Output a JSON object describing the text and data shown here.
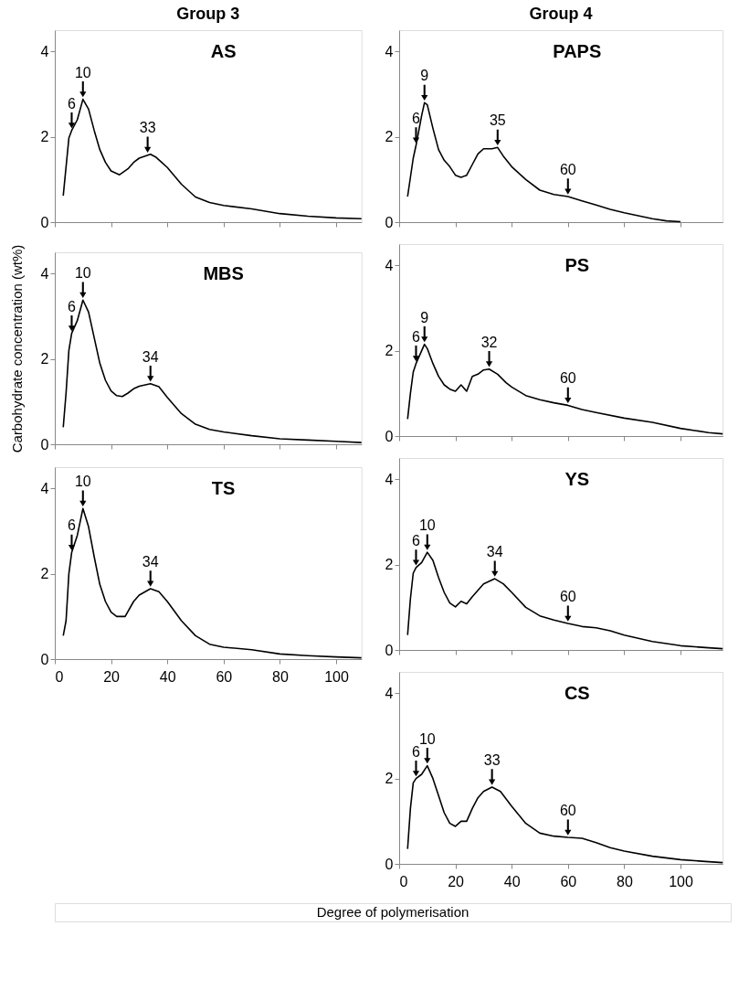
{
  "chart_data": [
    {
      "type": "line",
      "title": "AS",
      "annotations": [
        "Group 3",
        {
          "text": "6",
          "x": 6,
          "y": 2.15
        },
        {
          "text": "10",
          "x": 10,
          "y": 2.88
        },
        {
          "text": "33",
          "x": 33,
          "y": 1.58
        }
      ],
      "xlim": [
        0,
        109
      ],
      "ylim": [
        0,
        4.5
      ],
      "xticks": [
        0,
        20,
        40,
        60,
        80,
        100
      ],
      "yticks": [
        0,
        2,
        4
      ],
      "tick_labels": "y",
      "grid": false,
      "series": [
        {
          "color": "#000000",
          "x": [
            3,
            5,
            6,
            8,
            10,
            12,
            14,
            16,
            18,
            20,
            23,
            26,
            28,
            30,
            34,
            36,
            38,
            40,
            45,
            50,
            55,
            60,
            70,
            80,
            90,
            100,
            109
          ],
          "values": [
            0.62,
            1.97,
            2.15,
            2.4,
            2.88,
            2.65,
            2.15,
            1.7,
            1.4,
            1.2,
            1.11,
            1.25,
            1.4,
            1.5,
            1.59,
            1.52,
            1.4,
            1.28,
            0.89,
            0.59,
            0.46,
            0.39,
            0.31,
            0.2,
            0.14,
            0.1,
            0.08
          ]
        }
      ]
    },
    {
      "type": "line",
      "title": "PAPS",
      "annotations": [
        "Group 4",
        {
          "text": "6",
          "x": 6,
          "y": 1.8
        },
        {
          "text": "9",
          "x": 9,
          "y": 2.8
        },
        {
          "text": "35",
          "x": 35,
          "y": 1.75
        },
        {
          "text": "60",
          "x": 60,
          "y": 0.6
        }
      ],
      "xlim": [
        0,
        115
      ],
      "ylim": [
        0,
        4.5
      ],
      "xticks": [
        0,
        20,
        40,
        60,
        80,
        100
      ],
      "yticks": [
        0,
        2,
        4
      ],
      "tick_labels": "y",
      "grid": false,
      "series": [
        {
          "color": "#000000",
          "x": [
            3,
            5,
            6,
            8,
            9,
            10,
            12,
            14,
            16,
            18,
            20,
            22,
            24,
            26,
            28,
            30,
            33,
            35,
            37,
            40,
            45,
            50,
            55,
            60,
            65,
            70,
            75,
            80,
            85,
            90,
            95,
            100
          ],
          "values": [
            0.6,
            1.5,
            1.8,
            2.5,
            2.8,
            2.75,
            2.2,
            1.7,
            1.45,
            1.3,
            1.1,
            1.05,
            1.1,
            1.35,
            1.6,
            1.72,
            1.72,
            1.75,
            1.55,
            1.3,
            1.0,
            0.75,
            0.65,
            0.6,
            0.5,
            0.4,
            0.3,
            0.22,
            0.15,
            0.08,
            0.03,
            0.01
          ]
        }
      ]
    },
    {
      "type": "line",
      "title": "MBS",
      "ylabel": "Carbohydrate concentration (wt%)",
      "annotations": [
        {
          "text": "6",
          "x": 6,
          "y": 2.6
        },
        {
          "text": "10",
          "x": 10,
          "y": 3.38
        },
        {
          "text": "34",
          "x": 34,
          "y": 1.42
        }
      ],
      "xlim": [
        0,
        109
      ],
      "ylim": [
        0,
        4.5
      ],
      "xticks": [
        0,
        20,
        40,
        60,
        80,
        100
      ],
      "yticks": [
        0,
        2,
        4
      ],
      "tick_labels": "y",
      "grid": false,
      "series": [
        {
          "color": "#000000",
          "x": [
            3,
            4,
            5,
            6,
            8,
            10,
            12,
            14,
            16,
            18,
            20,
            22,
            24,
            26,
            28,
            30,
            34,
            37,
            40,
            45,
            50,
            55,
            60,
            70,
            80,
            90,
            100,
            109
          ],
          "values": [
            0.4,
            1.2,
            2.2,
            2.6,
            2.9,
            3.38,
            3.1,
            2.5,
            1.9,
            1.5,
            1.25,
            1.14,
            1.12,
            1.2,
            1.3,
            1.36,
            1.42,
            1.35,
            1.1,
            0.72,
            0.47,
            0.35,
            0.29,
            0.2,
            0.13,
            0.1,
            0.07,
            0.04
          ]
        }
      ]
    },
    {
      "type": "line",
      "title": "PS",
      "annotations": [
        {
          "text": "6",
          "x": 6,
          "y": 1.7
        },
        {
          "text": "9",
          "x": 9,
          "y": 2.15
        },
        {
          "text": "32",
          "x": 32,
          "y": 1.57
        },
        {
          "text": "60",
          "x": 60,
          "y": 0.72
        }
      ],
      "xlim": [
        0,
        115
      ],
      "ylim": [
        0,
        4.5
      ],
      "xticks": [
        0,
        20,
        40,
        60,
        80,
        100
      ],
      "yticks": [
        0,
        2,
        4
      ],
      "tick_labels": "y",
      "grid": false,
      "series": [
        {
          "color": "#000000",
          "x": [
            3,
            4,
            5,
            6,
            8,
            9,
            10,
            12,
            14,
            16,
            18,
            20,
            22,
            24,
            26,
            28,
            30,
            32,
            35,
            38,
            40,
            45,
            50,
            55,
            60,
            65,
            70,
            80,
            90,
            100,
            110,
            115
          ],
          "values": [
            0.4,
            1.0,
            1.5,
            1.7,
            2.0,
            2.15,
            2.05,
            1.7,
            1.4,
            1.2,
            1.1,
            1.05,
            1.2,
            1.05,
            1.4,
            1.45,
            1.55,
            1.57,
            1.45,
            1.25,
            1.15,
            0.95,
            0.85,
            0.78,
            0.72,
            0.62,
            0.55,
            0.42,
            0.32,
            0.18,
            0.08,
            0.05
          ]
        }
      ]
    },
    {
      "type": "line",
      "title": "TS",
      "annotations": [
        {
          "text": "6",
          "x": 6,
          "y": 2.5
        },
        {
          "text": "10",
          "x": 10,
          "y": 3.53
        },
        {
          "text": "34",
          "x": 34,
          "y": 1.65
        }
      ],
      "xlim": [
        0,
        109
      ],
      "ylim": [
        0,
        4.5
      ],
      "xticks": [
        0,
        20,
        40,
        60,
        80,
        100
      ],
      "yticks": [
        0,
        2,
        4
      ],
      "grid": false,
      "series": [
        {
          "color": "#000000",
          "x": [
            3,
            4,
            5,
            6,
            8,
            10,
            12,
            14,
            16,
            18,
            20,
            22,
            25,
            28,
            30,
            34,
            37,
            40,
            45,
            50,
            55,
            60,
            70,
            80,
            90,
            100,
            109
          ],
          "values": [
            0.55,
            0.9,
            2.0,
            2.5,
            2.9,
            3.53,
            3.1,
            2.4,
            1.75,
            1.35,
            1.1,
            1.0,
            1.0,
            1.35,
            1.5,
            1.65,
            1.58,
            1.35,
            0.9,
            0.55,
            0.35,
            0.28,
            0.22,
            0.12,
            0.08,
            0.05,
            0.03
          ]
        }
      ]
    },
    {
      "type": "line",
      "title": "YS",
      "annotations": [
        {
          "text": "6",
          "x": 6,
          "y": 1.93
        },
        {
          "text": "10",
          "x": 10,
          "y": 2.29
        },
        {
          "text": "34",
          "x": 34,
          "y": 1.67
        },
        {
          "text": "60",
          "x": 60,
          "y": 0.62
        }
      ],
      "xlim": [
        0,
        115
      ],
      "ylim": [
        0,
        4.5
      ],
      "xticks": [
        0,
        20,
        40,
        60,
        80,
        100
      ],
      "yticks": [
        0,
        2,
        4
      ],
      "tick_labels": "y",
      "grid": false,
      "series": [
        {
          "color": "#000000",
          "x": [
            3,
            4,
            5,
            6,
            8,
            10,
            12,
            14,
            16,
            18,
            20,
            22,
            24,
            26,
            28,
            30,
            34,
            37,
            40,
            45,
            50,
            55,
            60,
            65,
            70,
            75,
            80,
            90,
            100,
            110,
            115
          ],
          "values": [
            0.35,
            1.2,
            1.8,
            1.93,
            2.05,
            2.29,
            2.1,
            1.7,
            1.35,
            1.1,
            1.01,
            1.14,
            1.08,
            1.25,
            1.4,
            1.55,
            1.67,
            1.55,
            1.35,
            1.0,
            0.8,
            0.7,
            0.62,
            0.55,
            0.52,
            0.45,
            0.35,
            0.2,
            0.1,
            0.05,
            0.03
          ]
        }
      ]
    },
    {
      "type": "line",
      "title": "CS",
      "xlabel": "Degree of polymerisation",
      "annotations": [
        {
          "text": "6",
          "x": 6,
          "y": 2.0
        },
        {
          "text": "10",
          "x": 10,
          "y": 2.3
        },
        {
          "text": "33",
          "x": 33,
          "y": 1.8
        },
        {
          "text": "60",
          "x": 60,
          "y": 0.62
        }
      ],
      "xlim": [
        0,
        115
      ],
      "ylim": [
        0,
        4.5
      ],
      "xticks": [
        0,
        20,
        40,
        60,
        80,
        100
      ],
      "yticks": [
        0,
        2,
        4
      ],
      "grid": false,
      "series": [
        {
          "color": "#000000",
          "x": [
            3,
            4,
            5,
            6,
            8,
            10,
            12,
            14,
            16,
            18,
            20,
            22,
            24,
            26,
            28,
            30,
            33,
            36,
            40,
            45,
            50,
            55,
            60,
            65,
            70,
            75,
            80,
            90,
            100,
            110,
            115
          ],
          "values": [
            0.35,
            1.3,
            1.9,
            2.0,
            2.1,
            2.3,
            2.0,
            1.6,
            1.2,
            0.95,
            0.88,
            1.0,
            1.0,
            1.3,
            1.55,
            1.7,
            1.8,
            1.7,
            1.35,
            0.95,
            0.72,
            0.65,
            0.62,
            0.6,
            0.5,
            0.38,
            0.3,
            0.18,
            0.1,
            0.05,
            0.03
          ]
        }
      ]
    }
  ]
}
